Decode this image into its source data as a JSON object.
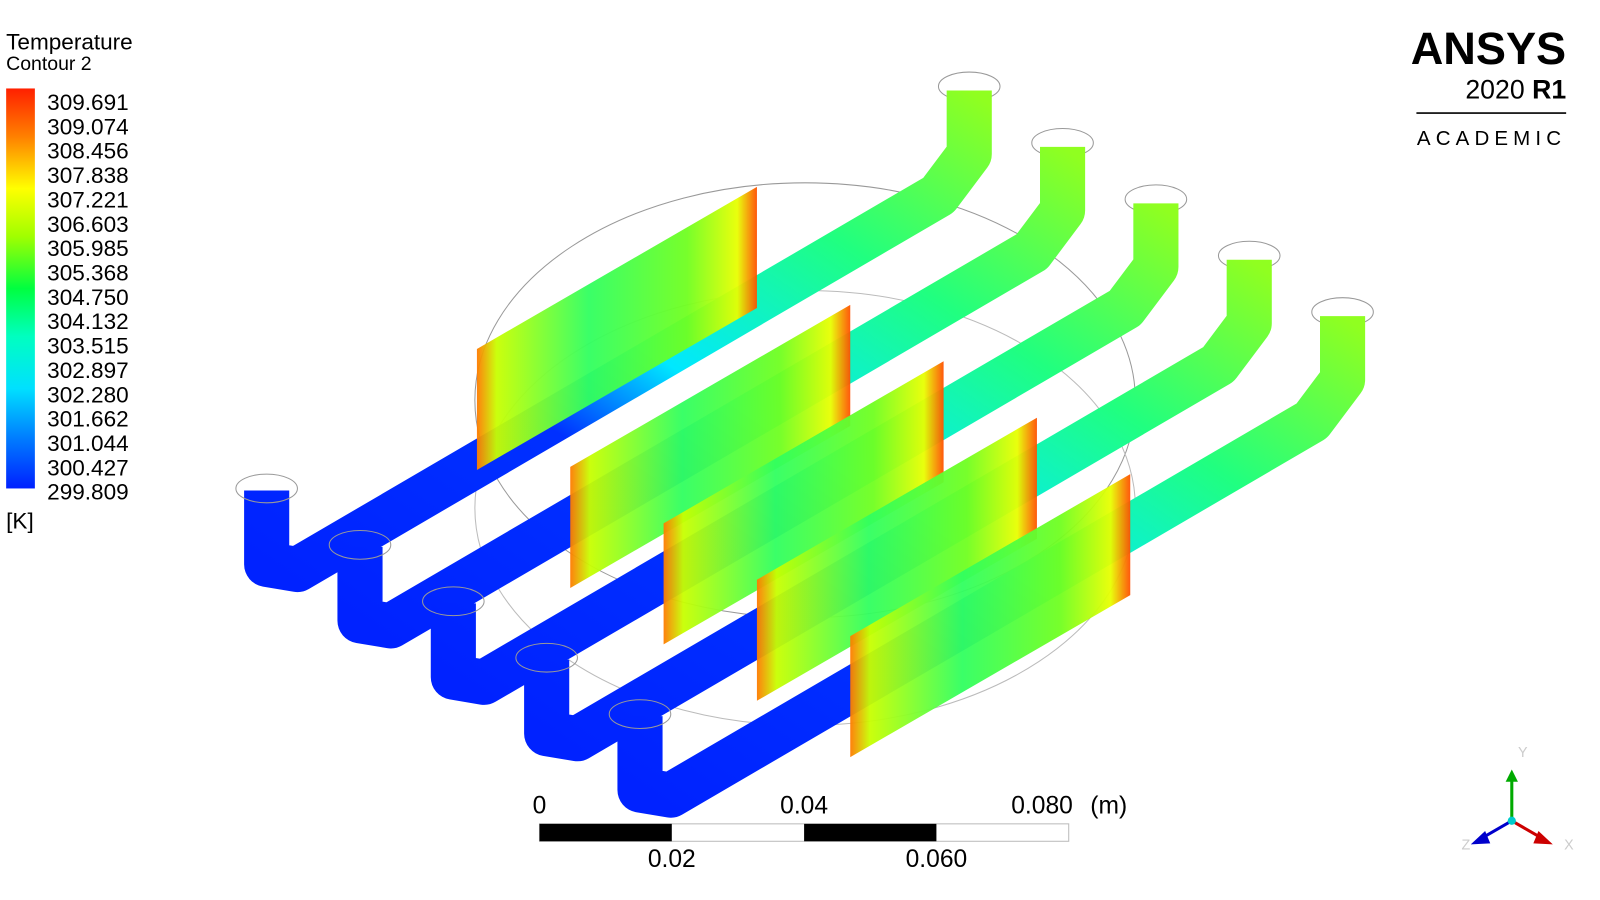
{
  "legend": {
    "title": "Temperature",
    "subtitle": "Contour 2",
    "labels": [
      "309.691",
      "309.074",
      "308.456",
      "307.838",
      "307.221",
      "306.603",
      "305.985",
      "305.368",
      "304.750",
      "304.132",
      "303.515",
      "302.897",
      "302.280",
      "301.662",
      "301.044",
      "300.427",
      "299.809"
    ],
    "unit": "[K]"
  },
  "logo": {
    "brand": "ANSYS",
    "version": "2020",
    "release": "R1",
    "edition": "ACADEMIC"
  },
  "scale_bar": {
    "top_labels": [
      "0",
      "0.04",
      "0.080"
    ],
    "unit": "(m)",
    "bottom_labels": [
      "0.02",
      "0.060"
    ]
  },
  "triad": {
    "y": "Y",
    "z": "Z",
    "x": "X"
  }
}
